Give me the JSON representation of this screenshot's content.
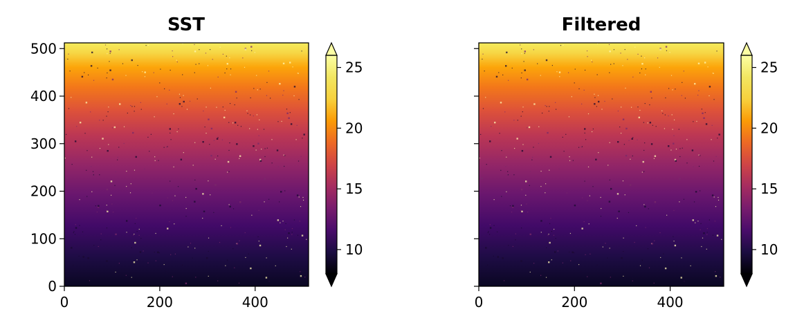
{
  "chart_data": [
    {
      "type": "heatmap",
      "title": "SST",
      "xlabel": "",
      "ylabel": "",
      "xlim": [
        0,
        512
      ],
      "ylim": [
        0,
        512
      ],
      "xticks": [
        0,
        200,
        400
      ],
      "yticks": [
        0,
        100,
        200,
        300,
        400,
        500
      ],
      "colormap": "inferno",
      "colorbar": {
        "ticks": [
          10,
          15,
          20,
          25
        ],
        "range": [
          8,
          26
        ],
        "extend": "both"
      },
      "value_gradient": {
        "y0_value": 9,
        "y512_value": 26
      }
    },
    {
      "type": "heatmap",
      "title": "Filtered",
      "xlabel": "",
      "ylabel": "",
      "xlim": [
        0,
        512
      ],
      "ylim": [
        0,
        512
      ],
      "xticks": [
        0,
        200,
        400
      ],
      "yticks": [
        0,
        100,
        200,
        300,
        400,
        500
      ],
      "ytick_labels_shown": false,
      "colormap": "inferno",
      "colorbar": {
        "ticks": [
          10,
          15,
          20,
          25
        ],
        "range": [
          8,
          26
        ],
        "extend": "both"
      },
      "value_gradient": {
        "y0_value": 9,
        "y512_value": 26
      }
    }
  ]
}
